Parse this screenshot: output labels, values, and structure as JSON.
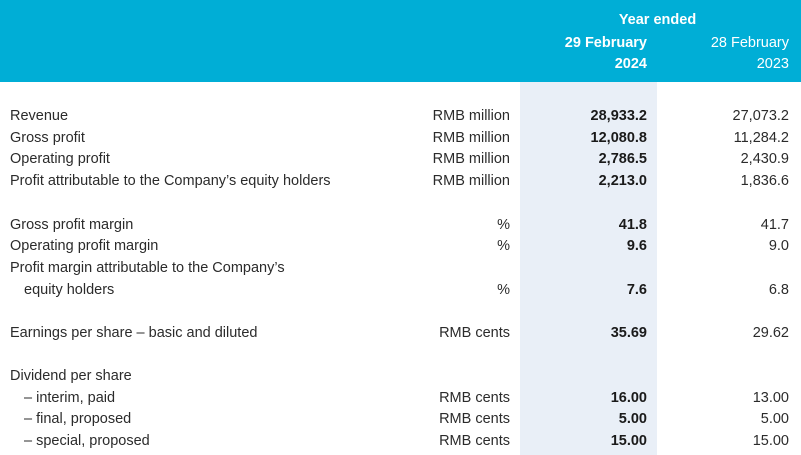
{
  "header": {
    "year_ended": "Year ended",
    "col_current_line1": "29 February",
    "col_current_line2": "2024",
    "col_prior_line1": "28 February",
    "col_prior_line2": "2023"
  },
  "rows": [
    {
      "label": "Revenue",
      "unit": "RMB million",
      "v2024": "28,933.2",
      "v2023": "27,073.2"
    },
    {
      "label": "Gross profit",
      "unit": "RMB million",
      "v2024": "12,080.8",
      "v2023": "11,284.2"
    },
    {
      "label": "Operating profit",
      "unit": "RMB million",
      "v2024": "2,786.5",
      "v2023": "2,430.9"
    },
    {
      "label": "Profit attributable to the Company’s equity holders",
      "unit": "RMB million",
      "v2024": "2,213.0",
      "v2023": "1,836.6"
    },
    {
      "label": "Gross profit margin",
      "unit": "%",
      "v2024": "41.8",
      "v2023": "41.7"
    },
    {
      "label": "Operating profit margin",
      "unit": "%",
      "v2024": "9.6",
      "v2023": "9.0"
    },
    {
      "label": "Profit margin attributable to the Company’s",
      "unit": "",
      "v2024": "",
      "v2023": ""
    },
    {
      "label": "equity holders",
      "unit": "%",
      "v2024": "7.6",
      "v2023": "6.8"
    },
    {
      "label": "Earnings per share – basic and diluted",
      "unit": "RMB cents",
      "v2024": "35.69",
      "v2023": "29.62"
    },
    {
      "label": "Dividend per share",
      "unit": "",
      "v2024": "",
      "v2023": ""
    },
    {
      "label": "– interim, paid",
      "unit": "RMB cents",
      "v2024": "16.00",
      "v2023": "13.00"
    },
    {
      "label": "– final, proposed",
      "unit": "RMB cents",
      "v2024": "5.00",
      "v2023": "5.00"
    },
    {
      "label": "– special, proposed",
      "unit": "RMB cents",
      "v2024": "15.00",
      "v2023": "15.00"
    }
  ]
}
